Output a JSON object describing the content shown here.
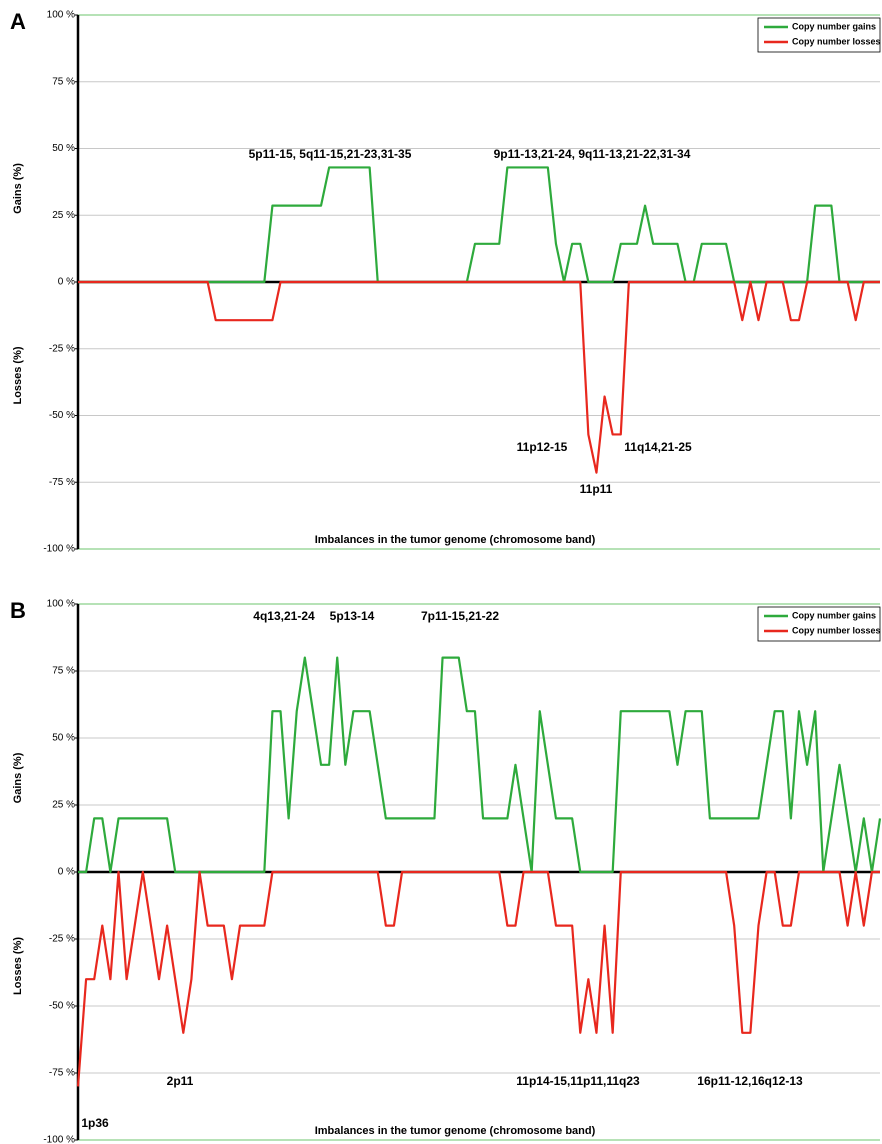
{
  "chart_data": [
    {
      "type": "line",
      "panel_label": "A",
      "y_label_upper": "Gains (%)",
      "y_label_lower": "Losses (%)",
      "x_label": "Imbalances in the tumor genome (chromosome band)",
      "ylim": [
        -100,
        100
      ],
      "yticks": [
        {
          "value": -100,
          "label": "-100 %"
        },
        {
          "value": -75,
          "label": "-75 %"
        },
        {
          "value": -50,
          "label": "-50 %"
        },
        {
          "value": -25,
          "label": "-25 %"
        },
        {
          "value": 0,
          "label": "0 %"
        },
        {
          "value": 25,
          "label": "25 %"
        },
        {
          "value": 50,
          "label": "50 %"
        },
        {
          "value": 75,
          "label": "75 %"
        },
        {
          "value": 100,
          "label": "100 %"
        }
      ],
      "grid": true,
      "legend": "upper right",
      "annotations": [
        "5p11-15, 5q11-15,21-23,31-35",
        "9p11-13,21-24, 9q11-13,21-22,31-34",
        "11p12-15",
        "11q14,21-25",
        "11p11"
      ],
      "series": [
        {
          "name": "Copy number gains",
          "color": "#2eaa3c",
          "values": [
            0,
            0,
            0,
            0,
            0,
            0,
            0,
            0,
            0,
            0,
            0,
            0,
            0,
            0,
            0,
            0,
            0,
            0,
            0,
            0,
            0,
            0,
            0,
            0,
            28.6,
            28.6,
            28.6,
            28.6,
            28.6,
            28.6,
            28.6,
            42.9,
            42.9,
            42.9,
            42.9,
            42.9,
            42.9,
            0,
            0,
            0,
            0,
            0,
            0,
            0,
            0,
            0,
            0,
            0,
            0,
            14.3,
            14.3,
            14.3,
            14.3,
            42.9,
            42.9,
            42.9,
            42.9,
            42.9,
            42.9,
            14.3,
            0,
            14.3,
            14.3,
            0,
            0,
            0,
            0,
            14.3,
            14.3,
            14.3,
            28.6,
            14.3,
            14.3,
            14.3,
            14.3,
            0,
            0,
            14.3,
            14.3,
            14.3,
            14.3,
            0,
            0,
            0,
            0,
            0,
            0,
            0,
            0,
            0,
            0,
            28.6,
            28.6,
            28.6,
            0,
            0,
            0,
            0,
            0,
            0
          ]
        },
        {
          "name": "Copy number losses",
          "color": "#e8281e",
          "values": [
            0,
            0,
            0,
            0,
            0,
            0,
            0,
            0,
            0,
            0,
            0,
            0,
            0,
            0,
            0,
            0,
            0,
            -14.3,
            -14.3,
            -14.3,
            -14.3,
            -14.3,
            -14.3,
            -14.3,
            -14.3,
            0,
            0,
            0,
            0,
            0,
            0,
            0,
            0,
            0,
            0,
            0,
            0,
            0,
            0,
            0,
            0,
            0,
            0,
            0,
            0,
            0,
            0,
            0,
            0,
            0,
            0,
            0,
            0,
            0,
            0,
            0,
            0,
            0,
            0,
            0,
            0,
            0,
            0,
            -57.1,
            -71.4,
            -42.9,
            -57.1,
            -57.1,
            0,
            0,
            0,
            0,
            0,
            0,
            0,
            0,
            0,
            0,
            0,
            0,
            0,
            0,
            -14.3,
            0,
            -14.3,
            0,
            0,
            0,
            -14.3,
            -14.3,
            0,
            0,
            0,
            0,
            0,
            0,
            -14.3,
            0,
            0,
            0
          ]
        }
      ]
    },
    {
      "type": "line",
      "panel_label": "B",
      "y_label_upper": "Gains (%)",
      "y_label_lower": "Losses (%)",
      "x_label": "Imbalances in the tumor genome (chromosome band)",
      "ylim": [
        -100,
        100
      ],
      "yticks": [
        {
          "value": -100,
          "label": "-100 %"
        },
        {
          "value": -75,
          "label": "-75 %"
        },
        {
          "value": -50,
          "label": "-50 %"
        },
        {
          "value": -25,
          "label": "-25 %"
        },
        {
          "value": 0,
          "label": "0 %"
        },
        {
          "value": 25,
          "label": "25 %"
        },
        {
          "value": 50,
          "label": "50 %"
        },
        {
          "value": 75,
          "label": "75 %"
        },
        {
          "value": 100,
          "label": "100 %"
        }
      ],
      "grid": true,
      "legend": "upper right",
      "annotations": [
        "4q13,21-24",
        "5p13-14",
        "7p11-15,21-22",
        "2p11",
        "11p14-15,11p11,11q23",
        "16p11-12,16q12-13",
        "1p36"
      ],
      "series": [
        {
          "name": "Copy number gains",
          "color": "#2eaa3c",
          "values": [
            0,
            0,
            20,
            20,
            0,
            20,
            20,
            20,
            20,
            20,
            20,
            20,
            0,
            0,
            0,
            0,
            0,
            0,
            0,
            0,
            0,
            0,
            0,
            0,
            60,
            60,
            20,
            60,
            80,
            60,
            40,
            40,
            80,
            40,
            60,
            60,
            60,
            40,
            20,
            20,
            20,
            20,
            20,
            20,
            20,
            80,
            80,
            80,
            60,
            60,
            20,
            20,
            20,
            20,
            40,
            20,
            0,
            60,
            40,
            20,
            20,
            20,
            0,
            0,
            0,
            0,
            0,
            60,
            60,
            60,
            60,
            60,
            60,
            60,
            40,
            60,
            60,
            60,
            20,
            20,
            20,
            20,
            20,
            20,
            20,
            40,
            60,
            60,
            20,
            60,
            40,
            60,
            0,
            20,
            40,
            20,
            0,
            20,
            0,
            20
          ]
        },
        {
          "name": "Copy number losses",
          "color": "#e8281e",
          "values": [
            -80,
            -40,
            -40,
            -20,
            -40,
            0,
            -40,
            -20,
            0,
            -20,
            -40,
            -20,
            -40,
            -60,
            -40,
            0,
            -20,
            -20,
            -20,
            -40,
            -20,
            -20,
            -20,
            -20,
            0,
            0,
            0,
            0,
            0,
            0,
            0,
            0,
            0,
            0,
            0,
            0,
            0,
            0,
            -20,
            -20,
            0,
            0,
            0,
            0,
            0,
            0,
            0,
            0,
            0,
            0,
            0,
            0,
            0,
            -20,
            -20,
            0,
            0,
            0,
            0,
            -20,
            -20,
            -20,
            -60,
            -40,
            -60,
            -20,
            -60,
            0,
            0,
            0,
            0,
            0,
            0,
            0,
            0,
            0,
            0,
            0,
            0,
            0,
            0,
            -20,
            -60,
            -60,
            -20,
            0,
            0,
            -20,
            -20,
            0,
            0,
            0,
            0,
            0,
            0,
            -20,
            0,
            -20,
            0,
            0
          ]
        }
      ]
    }
  ]
}
